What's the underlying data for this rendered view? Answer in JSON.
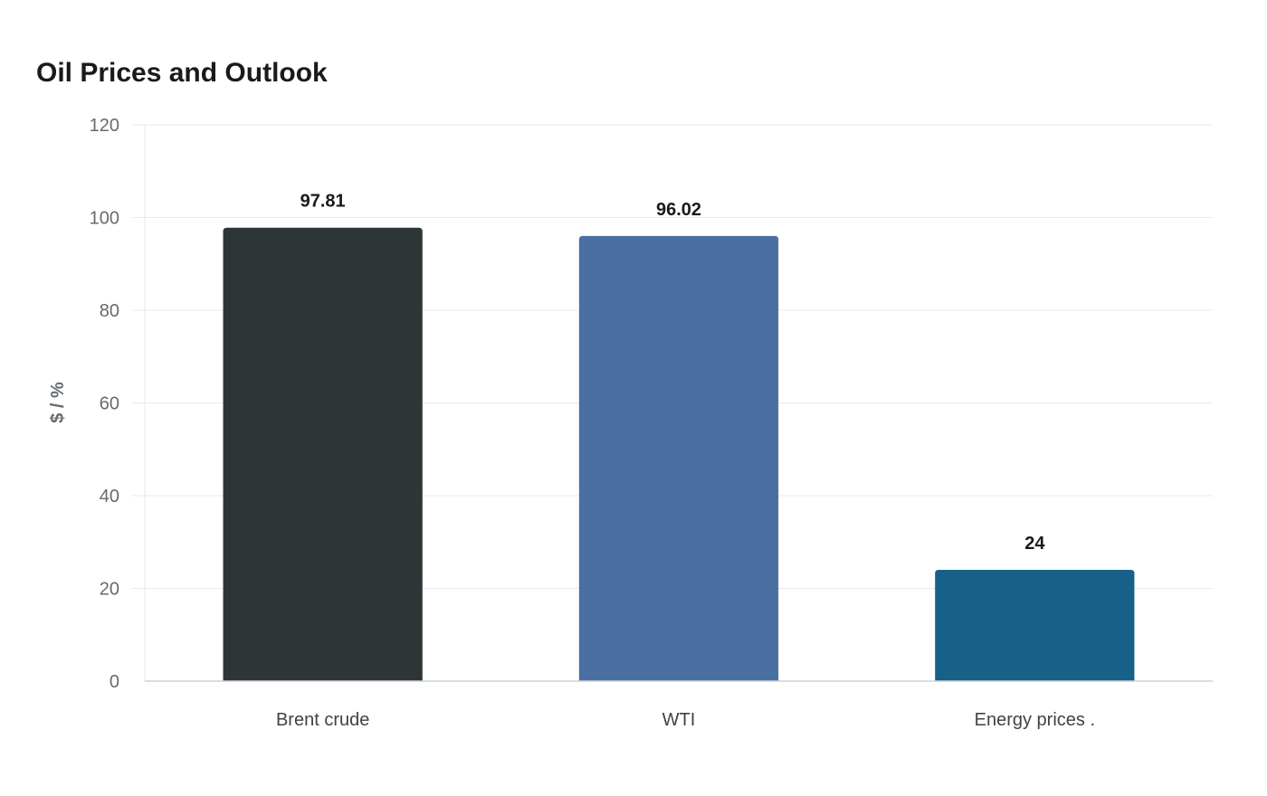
{
  "chart_data": {
    "type": "bar",
    "title": "Oil Prices and Outlook",
    "xlabel": "",
    "ylabel": "$ / %",
    "ylim": [
      0,
      120
    ],
    "yticks": [
      0,
      20,
      40,
      60,
      80,
      100,
      120
    ],
    "categories": [
      "Brent crude",
      "WTI",
      "Energy prices ."
    ],
    "values": [
      97.81,
      96.02,
      24
    ],
    "data_labels": [
      "97.81",
      "96.02",
      "24"
    ],
    "colors": [
      "#2e3537",
      "#4a6fa3",
      "#176088"
    ],
    "grid": true,
    "legend": "none"
  }
}
